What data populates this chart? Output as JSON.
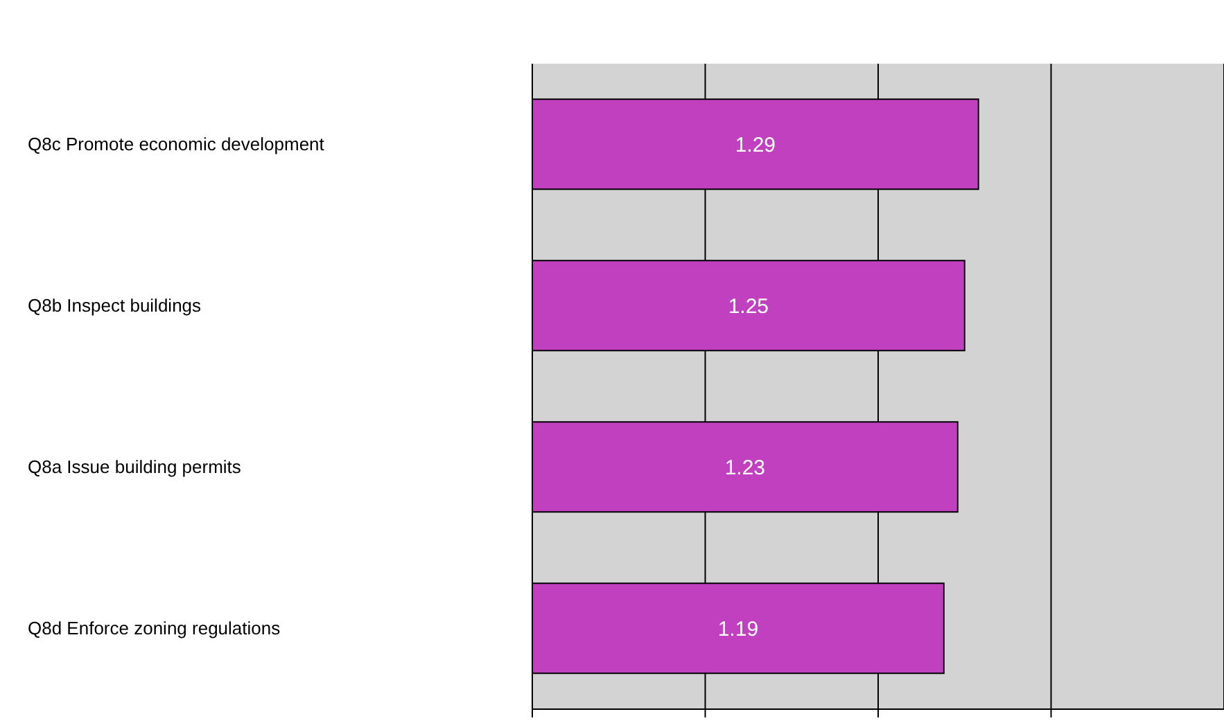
{
  "chart_data": {
    "type": "bar",
    "orientation": "horizontal",
    "categories": [
      "Q8c Promote economic development",
      "Q8b Inspect buildings",
      "Q8a Issue building permits",
      "Q8d Enforce zoning regulations"
    ],
    "values": [
      1.29,
      1.25,
      1.23,
      1.19
    ],
    "color": "#c040c0",
    "xlim": [
      0,
      2
    ],
    "xticks": [
      {
        "value": 0,
        "label": null
      },
      {
        "value": 0.5,
        "label": null
      },
      {
        "value": 1,
        "label": null
      },
      {
        "value": 1.5,
        "label": null
      }
    ],
    "grid": "x",
    "tick_labels": "y",
    "data_labels": true
  }
}
